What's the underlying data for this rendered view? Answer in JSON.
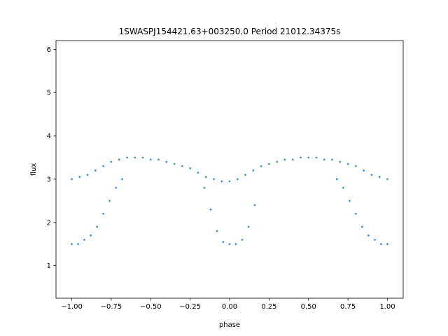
{
  "chart_data": {
    "type": "scatter",
    "title": "1SWASPJ154421.63+003250.0 Period 21012.34375s",
    "xlabel": "phase",
    "ylabel": "flux",
    "xlim": [
      -1.1,
      1.1
    ],
    "ylim": [
      0.25,
      6.2
    ],
    "xticks": [
      -1.0,
      -0.75,
      -0.5,
      -0.25,
      0.0,
      0.25,
      0.5,
      0.75,
      1.0
    ],
    "xtick_labels": [
      "−1.00",
      "−0.75",
      "−0.50",
      "−0.25",
      "0.00",
      "0.25",
      "0.50",
      "0.75",
      "1.00"
    ],
    "yticks": [
      1,
      2,
      3,
      4,
      5,
      6
    ],
    "ytick_labels": [
      "1",
      "2",
      "3",
      "4",
      "5",
      "6"
    ],
    "grid": false,
    "color": "#1f77b4",
    "series": [
      {
        "x": [
          -1.0,
          -0.95,
          -0.9,
          -0.85,
          -0.8,
          -0.75,
          -0.7,
          -0.65,
          -0.6,
          -0.55,
          -0.5,
          -0.45,
          -0.4,
          -0.35,
          -0.3,
          -0.25,
          -0.2,
          -0.15,
          -0.1,
          -0.05,
          0.0,
          0.05,
          0.1,
          0.15,
          0.2,
          0.25,
          0.3,
          0.35,
          0.4,
          0.45,
          0.5,
          0.55,
          0.6,
          0.65,
          0.7,
          0.75,
          0.8,
          0.85,
          0.9,
          0.95,
          1.0
        ],
        "y": [
          3.0,
          3.05,
          3.1,
          3.2,
          3.3,
          3.4,
          3.45,
          3.5,
          3.5,
          3.5,
          3.45,
          3.45,
          3.4,
          3.35,
          3.3,
          3.25,
          3.15,
          3.05,
          3.0,
          2.95,
          2.95,
          3.0,
          3.1,
          3.2,
          3.3,
          3.35,
          3.4,
          3.45,
          3.45,
          3.5,
          3.5,
          3.5,
          3.45,
          3.45,
          3.4,
          3.35,
          3.3,
          3.2,
          3.1,
          3.05,
          3.0
        ]
      },
      {
        "x": [
          -1.0,
          -0.96,
          -0.92,
          -0.88,
          -0.84,
          -0.8,
          -0.76,
          -0.72,
          -0.68,
          -0.16,
          -0.12,
          -0.08,
          -0.04,
          0.0,
          0.04,
          0.08,
          0.12,
          0.16,
          0.68,
          0.72,
          0.76,
          0.8,
          0.84,
          0.88,
          0.92,
          0.96,
          1.0
        ],
        "y": [
          1.5,
          1.5,
          1.6,
          1.7,
          1.9,
          2.2,
          2.5,
          2.8,
          3.0,
          2.8,
          2.3,
          1.8,
          1.55,
          1.5,
          1.5,
          1.6,
          1.9,
          2.4,
          3.0,
          2.8,
          2.5,
          2.2,
          1.9,
          1.7,
          1.6,
          1.5,
          1.5
        ]
      }
    ]
  }
}
